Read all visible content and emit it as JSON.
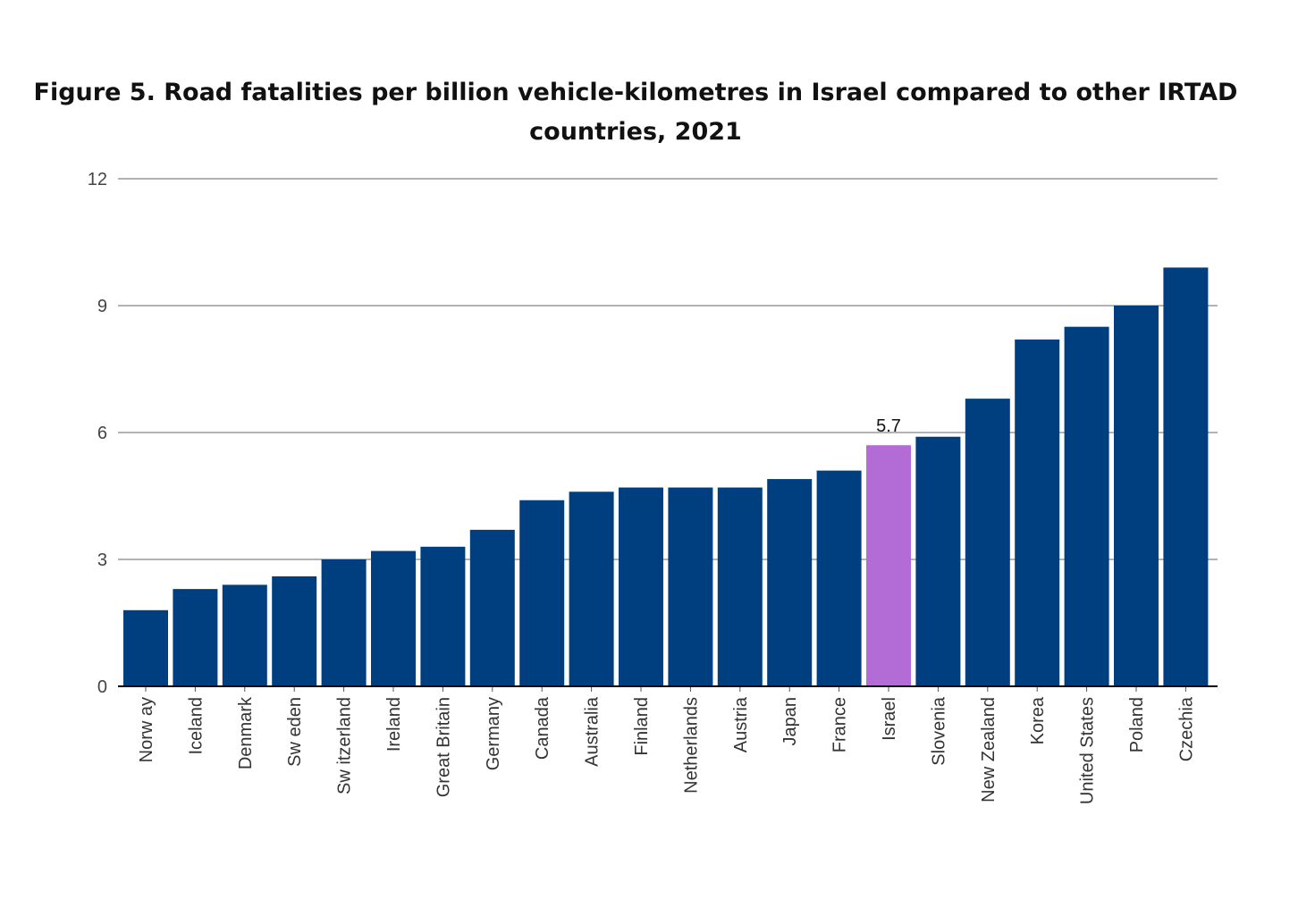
{
  "colors": {
    "bar": "#003f7f",
    "highlight": "#b36cd6",
    "grid": "#9a9a9a",
    "axis": "#000000"
  },
  "chart_data": {
    "type": "bar",
    "title": "Figure 5. Road fatalities per billion vehicle-kilometres in Israel compared to other IRTAD countries, 2021",
    "xlabel": "",
    "ylabel": "",
    "ylim": [
      0,
      12
    ],
    "yticks": [
      0,
      3,
      6,
      9,
      12
    ],
    "grid": true,
    "legend": "none",
    "highlight_category": "Israel",
    "categories": [
      "Norw ay",
      "Iceland",
      "Denmark",
      "Sw eden",
      "Sw itzerland",
      "Ireland",
      "Great Britain",
      "Germany",
      "Canada",
      "Australia",
      "Finland",
      "Netherlands",
      "Austria",
      "Japan",
      "France",
      "Israel",
      "Slovenia",
      "New  Zealand",
      "Korea",
      "United States",
      "Poland",
      "Czechia"
    ],
    "values": [
      1.8,
      2.3,
      2.4,
      2.6,
      3.0,
      3.2,
      3.3,
      3.7,
      4.4,
      4.6,
      4.7,
      4.7,
      4.7,
      4.9,
      5.1,
      5.7,
      5.9,
      6.8,
      8.2,
      8.5,
      9.0,
      9.9
    ],
    "data_labels": [
      {
        "category": "Israel",
        "text": "5.7"
      }
    ]
  }
}
